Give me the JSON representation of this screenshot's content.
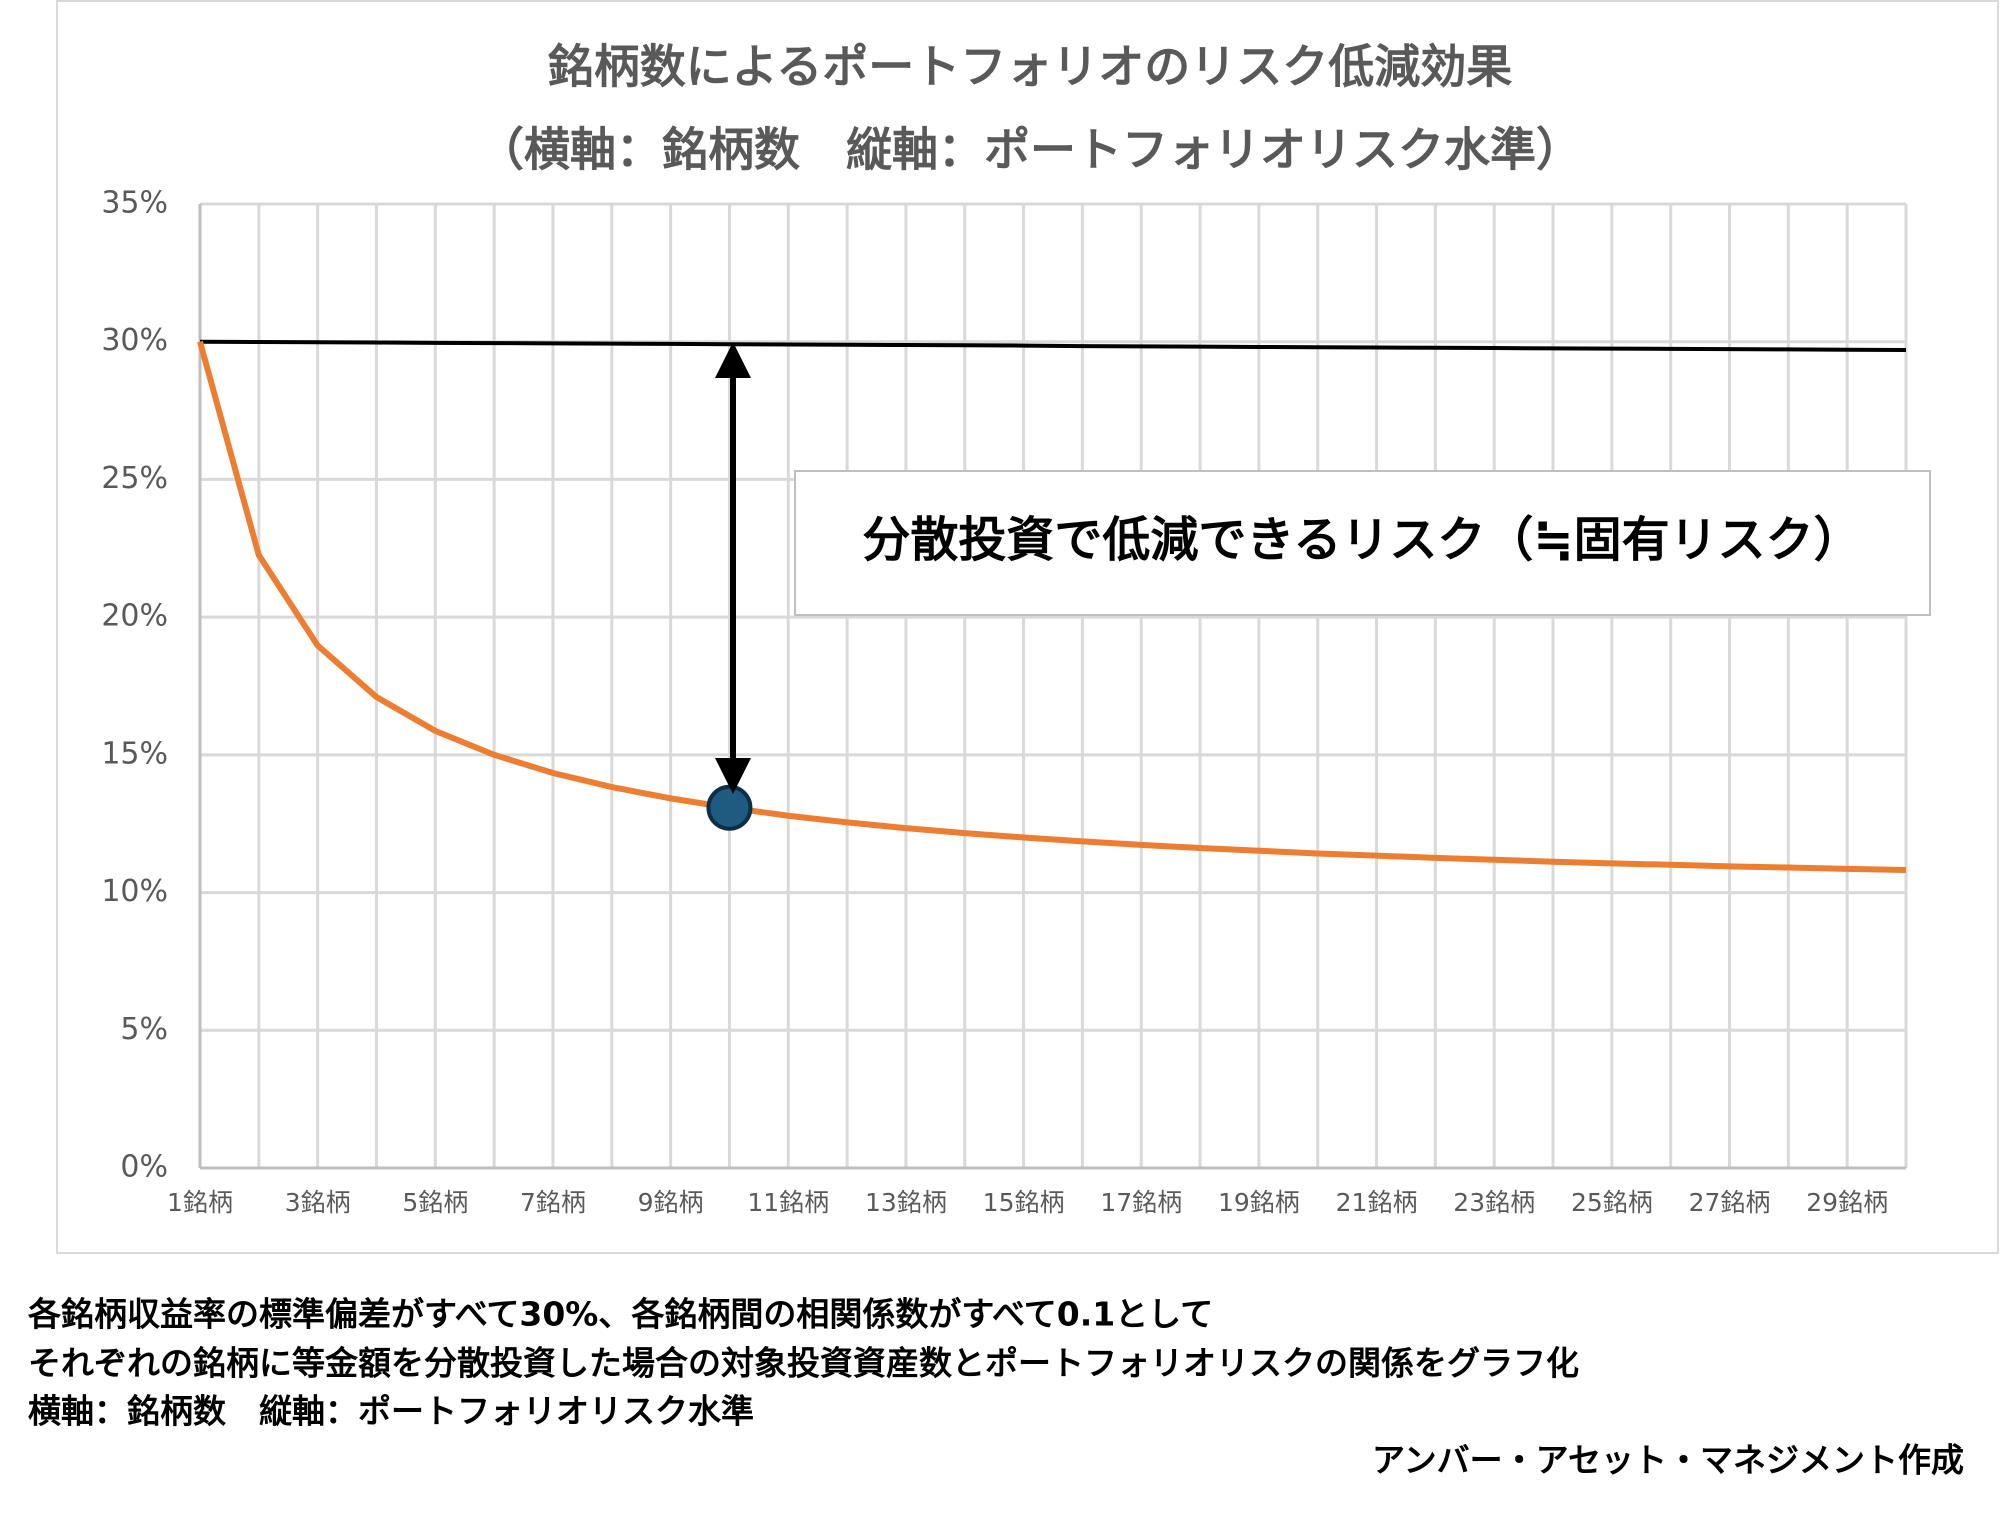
{
  "chart_data": {
    "type": "line",
    "title": [
      "銘柄数によるポートフォリオのリスク低減効果",
      "（横軸：銘柄数　縦軸：ポートフォリオリスク水準）"
    ],
    "categories": [
      "1銘柄",
      null,
      "3銘柄",
      null,
      "5銘柄",
      null,
      "7銘柄",
      null,
      "9銘柄",
      null,
      "11銘柄",
      null,
      "13銘柄",
      null,
      "15銘柄",
      null,
      "17銘柄",
      null,
      "19銘柄",
      null,
      "21銘柄",
      null,
      "23銘柄",
      null,
      "25銘柄",
      null,
      "27銘柄",
      null,
      "29銘柄",
      null
    ],
    "series": [
      {
        "color": "#ed7d31",
        "values": [
          30,
          22.25,
          18.97,
          17.1,
          15.87,
          15,
          14.34,
          13.83,
          13.42,
          13.08,
          12.79,
          12.55,
          12.34,
          12.16,
          12,
          11.86,
          11.73,
          11.62,
          11.52,
          11.42,
          11.34,
          11.26,
          11.19,
          11.12,
          11.06,
          11.01,
          10.95,
          10.91,
          10.86,
          10.82
        ]
      },
      {
        "color": "#000000",
        "values": [
          30,
          29.99,
          29.98,
          29.97,
          29.96,
          29.95,
          29.94,
          29.93,
          29.92,
          29.91,
          29.9,
          29.89,
          29.88,
          29.87,
          29.86,
          29.84,
          29.83,
          29.82,
          29.81,
          29.8,
          29.79,
          29.78,
          29.77,
          29.76,
          29.75,
          29.74,
          29.73,
          29.72,
          29.71,
          29.7
        ]
      }
    ],
    "highlight": {
      "index": 9,
      "color": "#1f5a80"
    },
    "ylim": [
      0,
      35
    ],
    "yticks": [
      {
        "value": 0,
        "label": "0%"
      },
      {
        "value": 5,
        "label": "5%"
      },
      {
        "value": 10,
        "label": "10%"
      },
      {
        "value": 15,
        "label": "15%"
      },
      {
        "value": 20,
        "label": "20%"
      },
      {
        "value": 25,
        "label": "25%"
      },
      {
        "value": 30,
        "label": "30%"
      },
      {
        "value": 35,
        "label": "35%"
      }
    ],
    "grid": true,
    "annotation": "分散投資で低減できるリスク（≒固有リスク）",
    "notes": [
      "各銘柄収益率の標準偏差がすべて30%、各銘柄間の相関係数がすべて0.1として",
      "それぞれの銘柄に等金額を分散投資した場合の対象投資資産数とポートフォリオリスクの関係をグラフ化",
      "横軸：銘柄数　縦軸：ポートフォリオリスク水準"
    ],
    "credit": "アンバー・アセット・マネジメント作成"
  }
}
